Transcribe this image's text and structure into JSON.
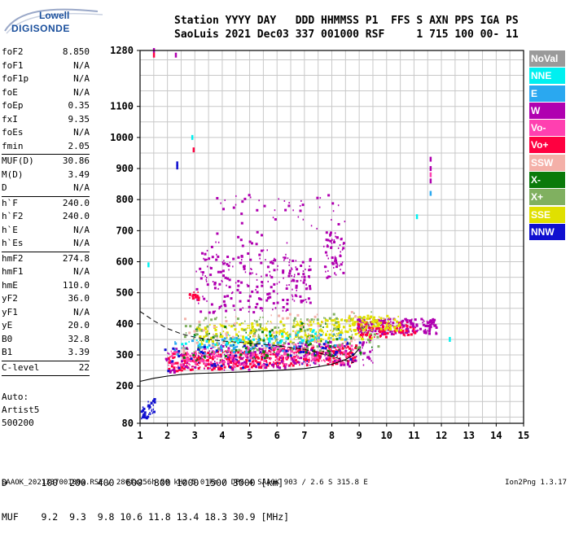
{
  "logo": {
    "line1": "Lowell",
    "line2": "DIGISONDE"
  },
  "header": {
    "line1": "Station YYYY DAY   DDD HHMMSS P1  FFS S AXN PPS IGA PS",
    "line2": "SaoLuis 2021 Dec03 337 001000 RSF     1 715 100 00- 11"
  },
  "params": {
    "group1": [
      {
        "name": "foF2",
        "value": "8.850"
      },
      {
        "name": "foF1",
        "value": "N/A"
      },
      {
        "name": "foF1p",
        "value": "N/A"
      },
      {
        "name": "foE",
        "value": "N/A"
      },
      {
        "name": "foEp",
        "value": "0.35"
      },
      {
        "name": "fxI",
        "value": "9.35"
      },
      {
        "name": "foEs",
        "value": "N/A"
      },
      {
        "name": "fmin",
        "value": "2.05"
      }
    ],
    "group2": [
      {
        "name": "MUF(D)",
        "value": "30.86"
      },
      {
        "name": "M(D)",
        "value": "3.49"
      },
      {
        "name": "D",
        "value": "N/A"
      }
    ],
    "group3": [
      {
        "name": "h`F",
        "value": "240.0"
      },
      {
        "name": "h`F2",
        "value": "240.0"
      },
      {
        "name": "h`E",
        "value": "N/A"
      },
      {
        "name": "h`Es",
        "value": "N/A"
      }
    ],
    "group4": [
      {
        "name": "hmF2",
        "value": "274.8"
      },
      {
        "name": "hmF1",
        "value": "N/A"
      },
      {
        "name": "hmE",
        "value": "110.0"
      },
      {
        "name": "yF2",
        "value": "36.0"
      },
      {
        "name": "yF1",
        "value": "N/A"
      },
      {
        "name": "yE",
        "value": "20.0"
      },
      {
        "name": "B0",
        "value": "32.8"
      },
      {
        "name": "B1",
        "value": "3.39"
      }
    ],
    "group5": [
      {
        "name": "C-level",
        "value": "22"
      }
    ]
  },
  "artist": {
    "line1": "Auto:",
    "line2": "Artist5",
    "line3": "500200"
  },
  "legend": [
    {
      "label": "NoVal",
      "bg": "#9a9a9a",
      "fg": "#ffffff"
    },
    {
      "label": "NNE",
      "bg": "#00f0f0",
      "fg": "#ffffff"
    },
    {
      "label": "E",
      "bg": "#2aa8f0",
      "fg": "#ffffff"
    },
    {
      "label": "W",
      "bg": "#b000b0",
      "fg": "#ffffff"
    },
    {
      "label": "Vo-",
      "bg": "#ff40b0",
      "fg": "#ffffff"
    },
    {
      "label": "Vo+",
      "bg": "#ff0040",
      "fg": "#ffffff"
    },
    {
      "label": "SSW",
      "bg": "#f4b0a8",
      "fg": "#ffffff"
    },
    {
      "label": "X-",
      "bg": "#0a7a0a",
      "fg": "#ffffff"
    },
    {
      "label": "X+",
      "bg": "#80b060",
      "fg": "#ffffff"
    },
    {
      "label": "SSE",
      "bg": "#e0e000",
      "fg": "#ffffff"
    },
    {
      "label": "NNW",
      "bg": "#1010d0",
      "fg": "#ffffff"
    }
  ],
  "table": {
    "line1": "D      100  200  400  600  800 1000 1500 3000 [km]",
    "line2": "MUF    9.2  9.3  9.8 10.6 11.8 13.4 18.3 30.9 [MHz]"
  },
  "status": "SAAOK_2021337001000.RSF / 280fx256h 50 kHz 5.0 km / DPS-4 SAAOK 903 / 2.6 S 315.8 E",
  "version": "Ion2Png 1.3.17",
  "chart_data": {
    "type": "scatter",
    "xlim": [
      1,
      15
    ],
    "ylim": [
      80,
      1280
    ],
    "xticks": [
      1,
      2,
      3,
      4,
      5,
      6,
      7,
      8,
      9,
      10,
      11,
      12,
      13,
      14,
      15
    ],
    "yticks": [
      80,
      200,
      300,
      400,
      500,
      600,
      700,
      800,
      900,
      1000,
      1100,
      1280
    ],
    "grid": true,
    "trace_curve": [
      [
        1.0,
        215
      ],
      [
        1.5,
        225
      ],
      [
        2.0,
        232
      ],
      [
        2.5,
        237
      ],
      [
        3.0,
        240
      ],
      [
        4.0,
        243
      ],
      [
        5.0,
        246
      ],
      [
        6.0,
        250
      ],
      [
        7.0,
        256
      ],
      [
        7.5,
        262
      ],
      [
        8.0,
        270
      ],
      [
        8.5,
        285
      ],
      [
        8.8,
        300
      ],
      [
        9.0,
        320
      ]
    ],
    "profile_curve": [
      [
        1.0,
        440
      ],
      [
        1.5,
        410
      ],
      [
        2.0,
        385
      ],
      [
        2.5,
        368
      ],
      [
        3.0,
        357
      ],
      [
        3.5,
        350
      ],
      [
        4.0,
        345
      ],
      [
        5.0,
        338
      ],
      [
        6.0,
        330
      ],
      [
        7.0,
        318
      ],
      [
        7.8,
        300
      ],
      [
        8.4,
        285
      ],
      [
        8.8,
        275
      ]
    ],
    "echo_regions": [
      {
        "color": "#ff0040",
        "x": [
          2.0,
          8.9
        ],
        "y": [
          250,
          310
        ],
        "density": 480
      },
      {
        "color": "#b000b0",
        "x": [
          1.9,
          9.5
        ],
        "y": [
          245,
          330
        ],
        "density": 260
      },
      {
        "color": "#ff40b0",
        "x": [
          2.0,
          8.8
        ],
        "y": [
          255,
          320
        ],
        "density": 220
      },
      {
        "color": "#e0e000",
        "x": [
          3.0,
          9.5
        ],
        "y": [
          330,
          400
        ],
        "density": 320
      },
      {
        "color": "#0a7a0a",
        "x": [
          2.3,
          9.6
        ],
        "y": [
          280,
          390
        ],
        "density": 120
      },
      {
        "color": "#80b060",
        "x": [
          2.5,
          9.8
        ],
        "y": [
          300,
          420
        ],
        "density": 140
      },
      {
        "color": "#2aa8f0",
        "x": [
          2.2,
          8.5
        ],
        "y": [
          300,
          350
        ],
        "density": 90
      },
      {
        "color": "#00f0f0",
        "x": [
          2.4,
          7.5
        ],
        "y": [
          320,
          360
        ],
        "density": 50
      },
      {
        "color": "#1010d0",
        "x": [
          1.8,
          9.0
        ],
        "y": [
          250,
          330
        ],
        "density": 70
      },
      {
        "color": "#f4b0a8",
        "x": [
          2.5,
          9.0
        ],
        "y": [
          300,
          420
        ],
        "density": 70
      },
      {
        "color": "#b000b0",
        "x": [
          8.9,
          11.8
        ],
        "y": [
          370,
          420
        ],
        "density": 200
      },
      {
        "color": "#ff0040",
        "x": [
          8.9,
          11.0
        ],
        "y": [
          360,
          410
        ],
        "density": 80
      },
      {
        "color": "#e0e000",
        "x": [
          8.5,
          10.5
        ],
        "y": [
          380,
          430
        ],
        "density": 90
      },
      {
        "color": "#b000b0",
        "x": [
          3.0,
          6.5
        ],
        "y": [
          440,
          640
        ],
        "density": 200
      },
      {
        "color": "#b000b0",
        "x": [
          6.5,
          7.2
        ],
        "y": [
          470,
          620
        ],
        "density": 60
      },
      {
        "color": "#b000b0",
        "x": [
          7.7,
          8.4
        ],
        "y": [
          550,
          700
        ],
        "density": 60
      },
      {
        "color": "#b000b0",
        "x": [
          3.5,
          8.5
        ],
        "y": [
          650,
          820
        ],
        "density": 60
      },
      {
        "color": "#1010d0",
        "x": [
          1.0,
          1.5
        ],
        "y": [
          90,
          140
        ],
        "density": 40
      },
      {
        "color": "#ff0040",
        "x": [
          2.7,
          3.1
        ],
        "y": [
          480,
          505
        ],
        "density": 20
      }
    ],
    "isolated_echoes": [
      {
        "x": 1.5,
        "y": 1280,
        "color": "#b000b0"
      },
      {
        "x": 1.5,
        "y": 1265,
        "color": "#ff0040"
      },
      {
        "x": 2.3,
        "y": 1265,
        "color": "#b000b0"
      },
      {
        "x": 2.35,
        "y": 915,
        "color": "#1010d0"
      },
      {
        "x": 2.35,
        "y": 905,
        "color": "#1010d0"
      },
      {
        "x": 11.6,
        "y": 930,
        "color": "#b000b0"
      },
      {
        "x": 11.6,
        "y": 900,
        "color": "#b000b0"
      },
      {
        "x": 11.6,
        "y": 880,
        "color": "#ff40b0"
      },
      {
        "x": 11.6,
        "y": 860,
        "color": "#b000b0"
      },
      {
        "x": 11.6,
        "y": 820,
        "color": "#2aa8f0"
      },
      {
        "x": 11.1,
        "y": 745,
        "color": "#00f0f0"
      },
      {
        "x": 12.3,
        "y": 350,
        "color": "#00f0f0"
      },
      {
        "x": 1.3,
        "y": 590,
        "color": "#00f0f0"
      },
      {
        "x": 2.9,
        "y": 1000,
        "color": "#00f0f0"
      },
      {
        "x": 2.95,
        "y": 960,
        "color": "#ff0040"
      }
    ]
  }
}
